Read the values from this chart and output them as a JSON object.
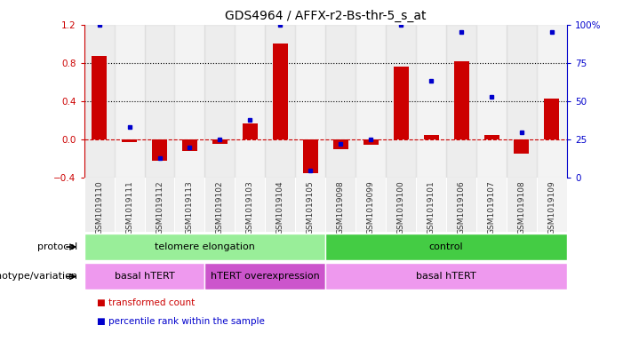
{
  "title": "GDS4964 / AFFX-r2-Bs-thr-5_s_at",
  "samples": [
    "GSM1019110",
    "GSM1019111",
    "GSM1019112",
    "GSM1019113",
    "GSM1019102",
    "GSM1019103",
    "GSM1019104",
    "GSM1019105",
    "GSM1019098",
    "GSM1019099",
    "GSM1019100",
    "GSM1019101",
    "GSM1019106",
    "GSM1019107",
    "GSM1019108",
    "GSM1019109"
  ],
  "transformed_count": [
    0.87,
    -0.03,
    -0.22,
    -0.12,
    -0.04,
    0.17,
    1.0,
    -0.35,
    -0.1,
    -0.05,
    0.76,
    0.05,
    0.82,
    0.05,
    -0.15,
    0.43
  ],
  "percentile_rank": [
    100,
    33,
    13,
    20,
    25,
    38,
    100,
    5,
    22,
    25,
    100,
    63,
    95,
    53,
    30,
    95
  ],
  "bar_color": "#cc0000",
  "dot_color": "#0000cc",
  "ylim_left": [
    -0.4,
    1.2
  ],
  "ylim_right": [
    0,
    100
  ],
  "yticks_left": [
    -0.4,
    0.0,
    0.4,
    0.8,
    1.2
  ],
  "yticks_right": [
    0,
    25,
    50,
    75,
    100
  ],
  "hline_y": [
    0.4,
    0.8
  ],
  "hline_color": "black",
  "zero_line_color": "#cc0000",
  "protocol_groups": [
    {
      "label": "telomere elongation",
      "start": 0,
      "end": 8,
      "color": "#99ee99"
    },
    {
      "label": "control",
      "start": 8,
      "end": 16,
      "color": "#44cc44"
    }
  ],
  "genotype_groups": [
    {
      "label": "basal hTERT",
      "start": 0,
      "end": 4,
      "color": "#ee99ee"
    },
    {
      "label": "hTERT overexpression",
      "start": 4,
      "end": 8,
      "color": "#cc55cc"
    },
    {
      "label": "basal hTERT",
      "start": 8,
      "end": 16,
      "color": "#ee99ee"
    }
  ],
  "legend_items": [
    {
      "label": "transformed count",
      "color": "#cc0000"
    },
    {
      "label": "percentile rank within the sample",
      "color": "#0000cc"
    }
  ],
  "label_protocol": "protocol",
  "label_genotype": "genotype/variation",
  "right_axis_color": "#0000cc",
  "left_axis_color": "#cc0000",
  "sample_bg_color": "#cccccc"
}
